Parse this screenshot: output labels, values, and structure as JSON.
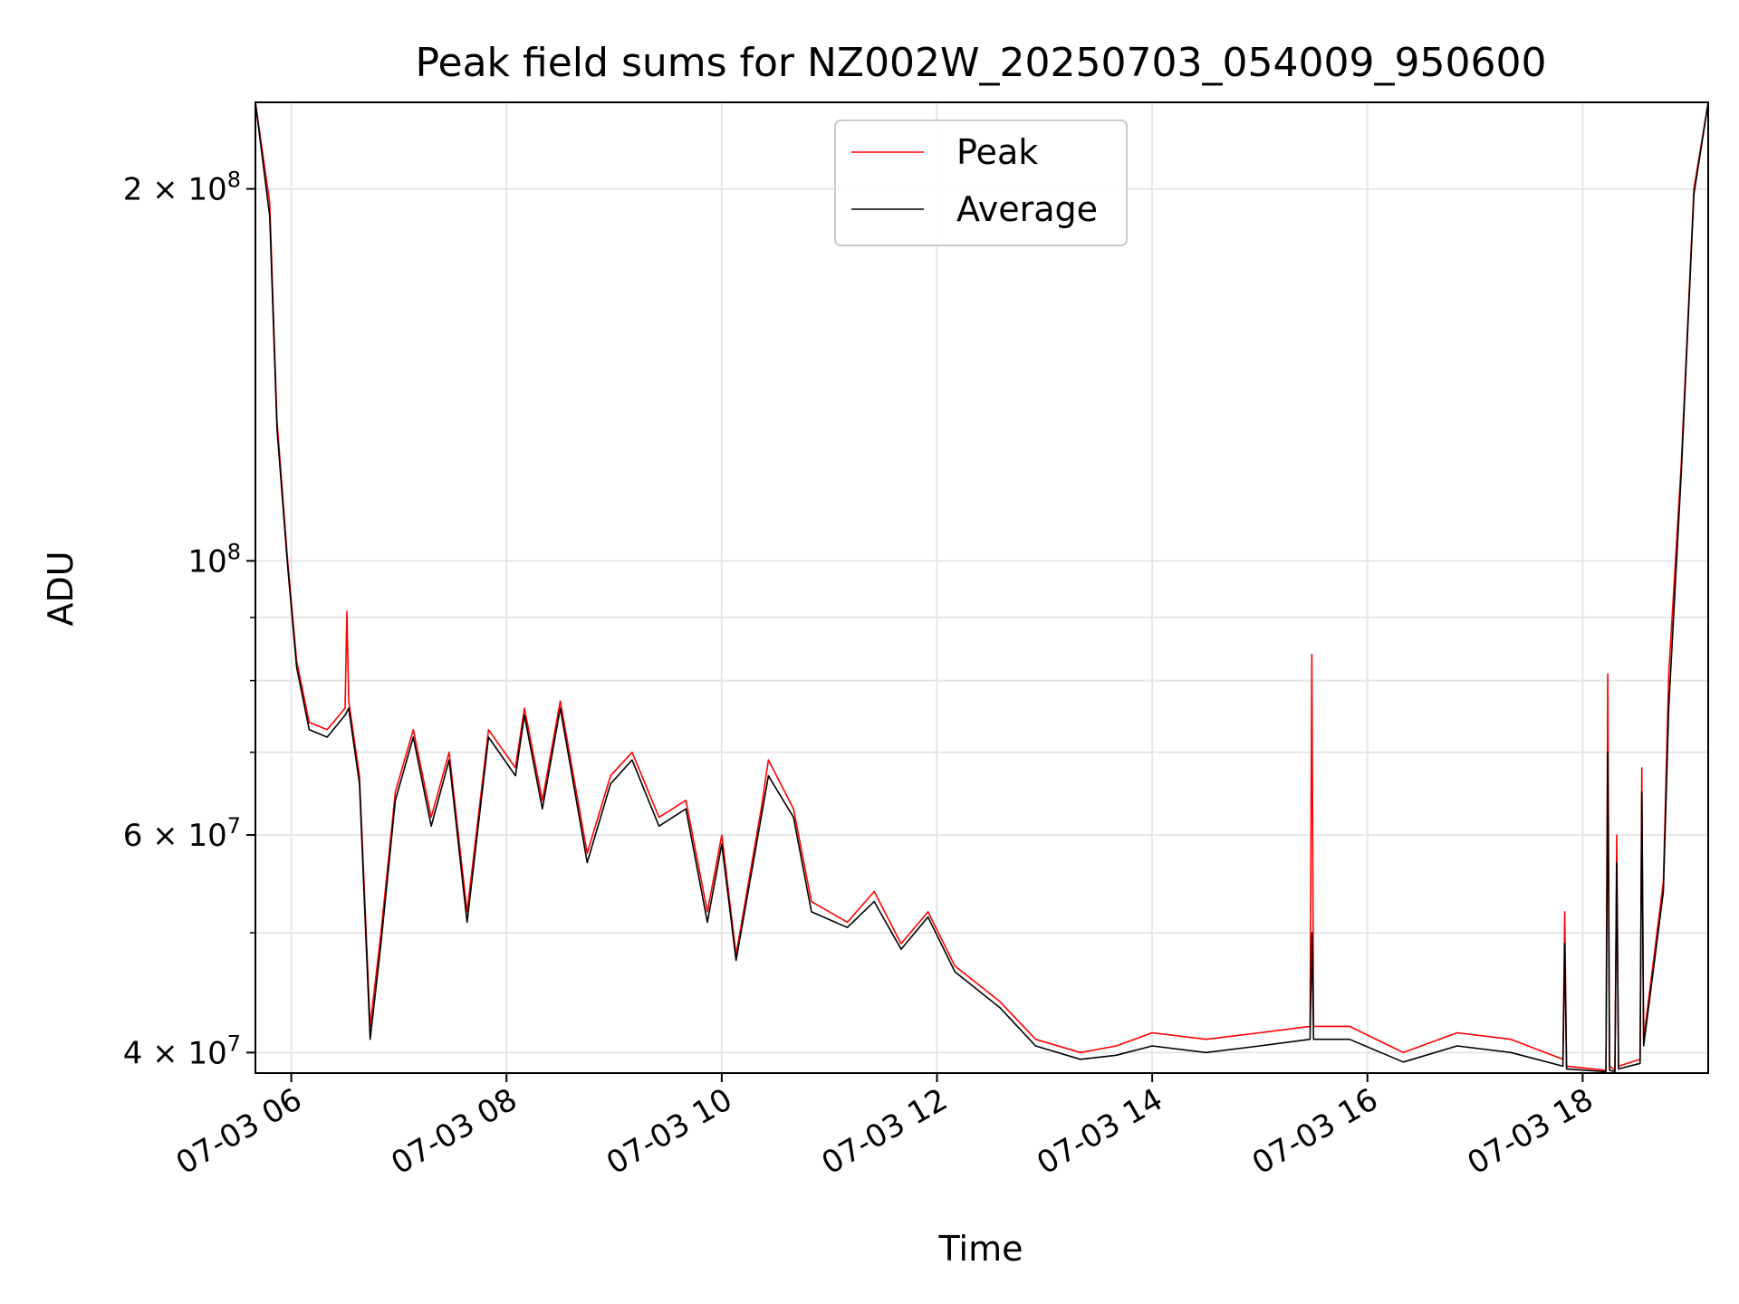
{
  "chart_data": {
    "type": "line",
    "title": "Peak field sums for NZ002W_20250703_054009_950600",
    "xlabel": "Time",
    "ylabel": "ADU",
    "yscale": "log",
    "xlim": [
      "2025-07-03 05:40",
      "2025-07-03 19:10"
    ],
    "ylim": [
      38500000,
      235000000
    ],
    "grid": true,
    "legend_position": "top-center",
    "x_ticks": [
      {
        "t": "2025-07-03 06:00",
        "label": "07-03 06"
      },
      {
        "t": "2025-07-03 08:00",
        "label": "07-03 08"
      },
      {
        "t": "2025-07-03 10:00",
        "label": "07-03 10"
      },
      {
        "t": "2025-07-03 12:00",
        "label": "07-03 12"
      },
      {
        "t": "2025-07-03 14:00",
        "label": "07-03 14"
      },
      {
        "t": "2025-07-03 16:00",
        "label": "07-03 16"
      },
      {
        "t": "2025-07-03 18:00",
        "label": "07-03 18"
      }
    ],
    "y_major_ticks": [
      {
        "v": 40000000,
        "mant": "4",
        "exp": "7"
      },
      {
        "v": 60000000,
        "mant": "6",
        "exp": "7"
      },
      {
        "v": 100000000,
        "mant": "",
        "exp": "8"
      },
      {
        "v": 200000000,
        "mant": "2",
        "exp": "8"
      }
    ],
    "y_minor_ticks": [
      50000000,
      70000000,
      80000000,
      90000000
    ],
    "series": [
      {
        "name": "Peak",
        "color": "#ff0000",
        "points": [
          [
            "2025-07-03 05:40",
            235000000
          ],
          [
            "2025-07-03 05:48",
            195000000
          ],
          [
            "2025-07-03 05:52",
            130000000
          ],
          [
            "2025-07-03 05:58",
            100000000
          ],
          [
            "2025-07-03 06:03",
            83000000
          ],
          [
            "2025-07-03 06:10",
            74000000
          ],
          [
            "2025-07-03 06:20",
            73000000
          ],
          [
            "2025-07-03 06:30",
            76000000
          ],
          [
            "2025-07-03 06:31",
            91000000
          ],
          [
            "2025-07-03 06:32",
            77000000
          ],
          [
            "2025-07-03 06:38",
            67000000
          ],
          [
            "2025-07-03 06:44",
            42000000
          ],
          [
            "2025-07-03 06:50",
            50000000
          ],
          [
            "2025-07-03 06:58",
            65000000
          ],
          [
            "2025-07-03 07:08",
            73000000
          ],
          [
            "2025-07-03 07:18",
            62000000
          ],
          [
            "2025-07-03 07:28",
            70000000
          ],
          [
            "2025-07-03 07:38",
            52000000
          ],
          [
            "2025-07-03 07:50",
            73000000
          ],
          [
            "2025-07-03 08:05",
            68000000
          ],
          [
            "2025-07-03 08:10",
            76000000
          ],
          [
            "2025-07-03 08:20",
            64000000
          ],
          [
            "2025-07-03 08:30",
            77000000
          ],
          [
            "2025-07-03 08:45",
            58000000
          ],
          [
            "2025-07-03 08:58",
            67000000
          ],
          [
            "2025-07-03 09:10",
            70000000
          ],
          [
            "2025-07-03 09:25",
            62000000
          ],
          [
            "2025-07-03 09:40",
            64000000
          ],
          [
            "2025-07-03 09:52",
            52000000
          ],
          [
            "2025-07-03 10:00",
            60000000
          ],
          [
            "2025-07-03 10:08",
            48000000
          ],
          [
            "2025-07-03 10:22",
            63000000
          ],
          [
            "2025-07-03 10:26",
            69000000
          ],
          [
            "2025-07-03 10:40",
            63000000
          ],
          [
            "2025-07-03 10:50",
            53000000
          ],
          [
            "2025-07-03 11:10",
            51000000
          ],
          [
            "2025-07-03 11:25",
            54000000
          ],
          [
            "2025-07-03 11:40",
            49000000
          ],
          [
            "2025-07-03 11:55",
            52000000
          ],
          [
            "2025-07-03 12:10",
            47000000
          ],
          [
            "2025-07-03 12:35",
            44000000
          ],
          [
            "2025-07-03 12:55",
            41000000
          ],
          [
            "2025-07-03 13:20",
            40000000
          ],
          [
            "2025-07-03 13:40",
            40500000
          ],
          [
            "2025-07-03 14:00",
            41500000
          ],
          [
            "2025-07-03 14:30",
            41000000
          ],
          [
            "2025-07-03 15:00",
            41500000
          ],
          [
            "2025-07-03 15:28",
            42000000
          ],
          [
            "2025-07-03 15:29",
            84000000
          ],
          [
            "2025-07-03 15:30",
            42000000
          ],
          [
            "2025-07-03 15:50",
            42000000
          ],
          [
            "2025-07-03 16:20",
            40000000
          ],
          [
            "2025-07-03 16:50",
            41500000
          ],
          [
            "2025-07-03 17:20",
            41000000
          ],
          [
            "2025-07-03 17:49",
            39500000
          ],
          [
            "2025-07-03 17:50",
            52000000
          ],
          [
            "2025-07-03 17:51",
            39000000
          ],
          [
            "2025-07-03 18:13",
            38700000
          ],
          [
            "2025-07-03 18:14",
            81000000
          ],
          [
            "2025-07-03 18:15",
            39000000
          ],
          [
            "2025-07-03 18:18",
            38700000
          ],
          [
            "2025-07-03 18:19",
            60000000
          ],
          [
            "2025-07-03 18:20",
            39000000
          ],
          [
            "2025-07-03 18:32",
            39500000
          ],
          [
            "2025-07-03 18:33",
            68000000
          ],
          [
            "2025-07-03 18:34",
            41000000
          ],
          [
            "2025-07-03 18:45",
            55000000
          ],
          [
            "2025-07-03 18:48",
            81000000
          ],
          [
            "2025-07-03 18:55",
            120000000
          ],
          [
            "2025-07-03 19:02",
            200000000
          ],
          [
            "2025-07-03 19:10",
            235000000
          ]
        ]
      },
      {
        "name": "Average",
        "color": "#000000",
        "points": [
          [
            "2025-07-03 05:40",
            235000000
          ],
          [
            "2025-07-03 05:48",
            190000000
          ],
          [
            "2025-07-03 05:52",
            128000000
          ],
          [
            "2025-07-03 05:58",
            99000000
          ],
          [
            "2025-07-03 06:03",
            82000000
          ],
          [
            "2025-07-03 06:10",
            73000000
          ],
          [
            "2025-07-03 06:20",
            72000000
          ],
          [
            "2025-07-03 06:30",
            75000000
          ],
          [
            "2025-07-03 06:32",
            76000000
          ],
          [
            "2025-07-03 06:38",
            66000000
          ],
          [
            "2025-07-03 06:44",
            41000000
          ],
          [
            "2025-07-03 06:50",
            49000000
          ],
          [
            "2025-07-03 06:58",
            64000000
          ],
          [
            "2025-07-03 07:08",
            72000000
          ],
          [
            "2025-07-03 07:18",
            61000000
          ],
          [
            "2025-07-03 07:28",
            69000000
          ],
          [
            "2025-07-03 07:38",
            51000000
          ],
          [
            "2025-07-03 07:50",
            72000000
          ],
          [
            "2025-07-03 08:05",
            67000000
          ],
          [
            "2025-07-03 08:10",
            75000000
          ],
          [
            "2025-07-03 08:20",
            63000000
          ],
          [
            "2025-07-03 08:30",
            76000000
          ],
          [
            "2025-07-03 08:45",
            57000000
          ],
          [
            "2025-07-03 08:58",
            66000000
          ],
          [
            "2025-07-03 09:10",
            69000000
          ],
          [
            "2025-07-03 09:25",
            61000000
          ],
          [
            "2025-07-03 09:40",
            63000000
          ],
          [
            "2025-07-03 09:52",
            51000000
          ],
          [
            "2025-07-03 10:00",
            59000000
          ],
          [
            "2025-07-03 10:08",
            47500000
          ],
          [
            "2025-07-03 10:22",
            62000000
          ],
          [
            "2025-07-03 10:26",
            67000000
          ],
          [
            "2025-07-03 10:40",
            62000000
          ],
          [
            "2025-07-03 10:50",
            52000000
          ],
          [
            "2025-07-03 11:10",
            50500000
          ],
          [
            "2025-07-03 11:25",
            53000000
          ],
          [
            "2025-07-03 11:40",
            48500000
          ],
          [
            "2025-07-03 11:55",
            51500000
          ],
          [
            "2025-07-03 12:10",
            46500000
          ],
          [
            "2025-07-03 12:35",
            43500000
          ],
          [
            "2025-07-03 12:55",
            40500000
          ],
          [
            "2025-07-03 13:20",
            39500000
          ],
          [
            "2025-07-03 13:40",
            39800000
          ],
          [
            "2025-07-03 14:00",
            40500000
          ],
          [
            "2025-07-03 14:30",
            40000000
          ],
          [
            "2025-07-03 15:00",
            40500000
          ],
          [
            "2025-07-03 15:28",
            41000000
          ],
          [
            "2025-07-03 15:29",
            50000000
          ],
          [
            "2025-07-03 15:30",
            41000000
          ],
          [
            "2025-07-03 15:50",
            41000000
          ],
          [
            "2025-07-03 16:20",
            39300000
          ],
          [
            "2025-07-03 16:50",
            40500000
          ],
          [
            "2025-07-03 17:20",
            40000000
          ],
          [
            "2025-07-03 17:49",
            39000000
          ],
          [
            "2025-07-03 17:50",
            49000000
          ],
          [
            "2025-07-03 17:51",
            38800000
          ],
          [
            "2025-07-03 18:13",
            38600000
          ],
          [
            "2025-07-03 18:14",
            70000000
          ],
          [
            "2025-07-03 18:15",
            38700000
          ],
          [
            "2025-07-03 18:18",
            38600000
          ],
          [
            "2025-07-03 18:19",
            57000000
          ],
          [
            "2025-07-03 18:20",
            38800000
          ],
          [
            "2025-07-03 18:32",
            39200000
          ],
          [
            "2025-07-03 18:33",
            65000000
          ],
          [
            "2025-07-03 18:34",
            40500000
          ],
          [
            "2025-07-03 18:45",
            54000000
          ],
          [
            "2025-07-03 18:48",
            76000000
          ],
          [
            "2025-07-03 18:55",
            118000000
          ],
          [
            "2025-07-03 19:02",
            198000000
          ],
          [
            "2025-07-03 19:10",
            235000000
          ]
        ]
      }
    ]
  }
}
